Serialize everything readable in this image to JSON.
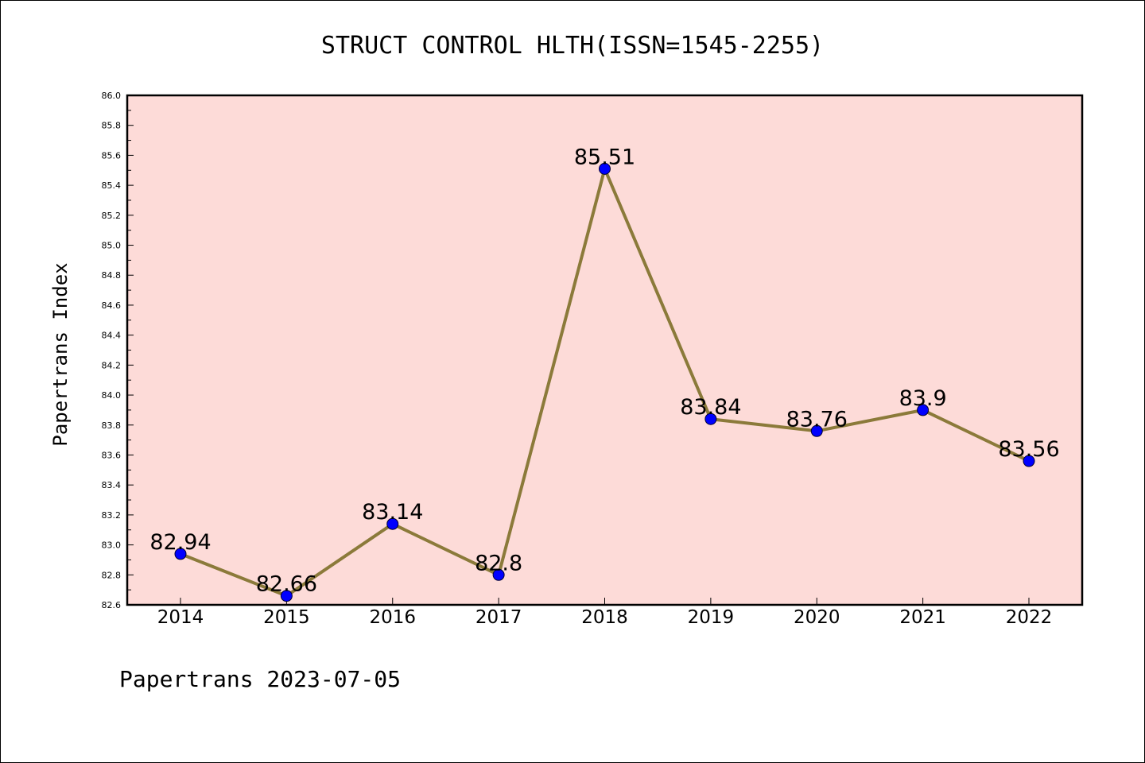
{
  "footer": "Papertrans 2023-07-05",
  "chart_data": {
    "type": "line",
    "title": "STRUCT CONTROL HLTH(ISSN=1545-2255)",
    "xlabel": "",
    "ylabel": "Papertrans Index",
    "categories": [
      "2014",
      "2015",
      "2016",
      "2017",
      "2018",
      "2019",
      "2020",
      "2021",
      "2022"
    ],
    "values": [
      82.94,
      82.66,
      83.14,
      82.8,
      85.51,
      83.84,
      83.76,
      83.9,
      83.56
    ],
    "data_labels": [
      "82.94",
      "82.66",
      "83.14",
      "82.8",
      "85.51",
      "83.84",
      "83.76",
      "83.9",
      "83.56"
    ],
    "ylim": [
      82.6,
      86.0
    ],
    "yticks": [
      "82.6",
      "82.8",
      "83.0",
      "83.2",
      "83.4",
      "83.6",
      "83.8",
      "84.0",
      "84.2",
      "84.4",
      "84.6",
      "84.8",
      "85.0",
      "85.2",
      "85.4",
      "85.6",
      "85.8",
      "86.0"
    ],
    "grid": false,
    "colors": {
      "plot_background": "#fddbd8",
      "line": "#8b7a3a",
      "marker": "#0000ff"
    }
  }
}
